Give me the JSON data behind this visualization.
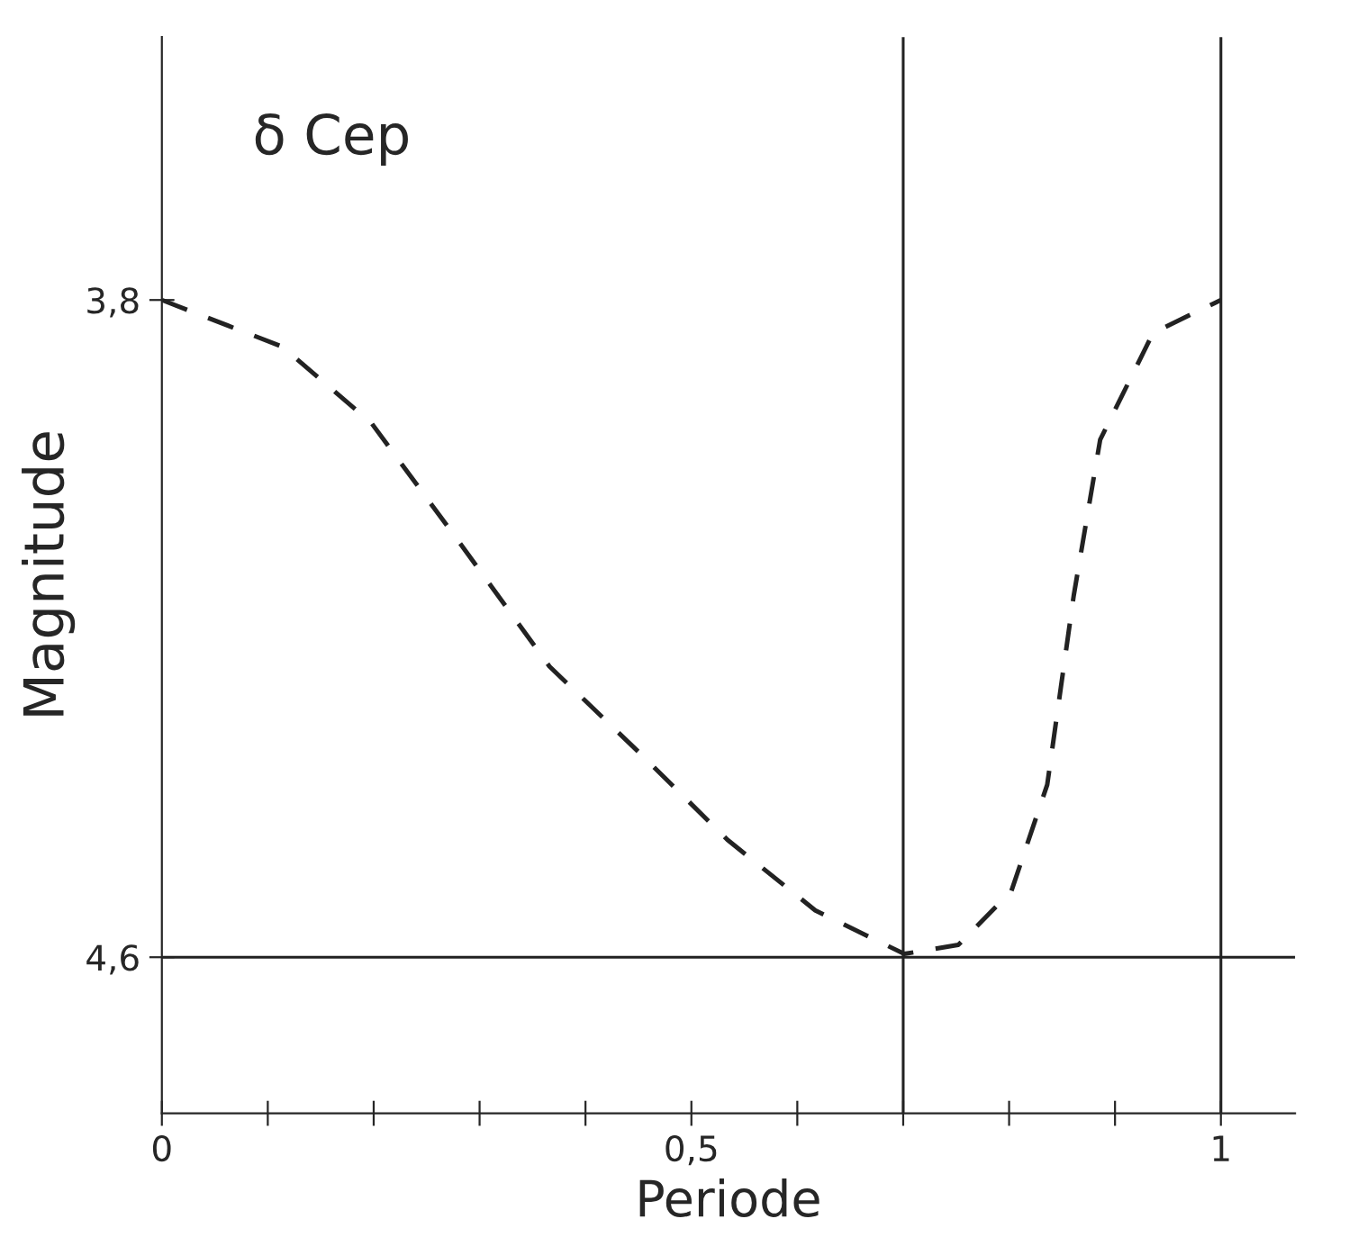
{
  "chart_data": {
    "type": "line",
    "title": "δ Cep",
    "xlabel": "Periode",
    "ylabel": "Magnitude",
    "x": [
      0,
      0.114,
      0.198,
      0.282,
      0.366,
      0.45,
      0.534,
      0.617,
      0.701,
      0.752,
      0.802,
      0.836,
      0.861,
      0.886,
      0.936,
      1
    ],
    "series": [
      {
        "color": "#222222",
        "values": [
          3.8,
          3.857,
          3.95,
          4.097,
          4.246,
          4.35,
          4.457,
          4.543,
          4.596,
          4.585,
          4.52,
          4.39,
          4.16,
          3.97,
          3.84,
          3.8
        ]
      }
    ],
    "xlim": [
      0,
      1.07
    ],
    "ylim": [
      4.79,
      3.48
    ],
    "xticks": [
      {
        "value": 0,
        "label": "0"
      },
      {
        "value": 0.1,
        "label": null
      },
      {
        "value": 0.2,
        "label": null
      },
      {
        "value": 0.3,
        "label": null
      },
      {
        "value": 0.4,
        "label": null
      },
      {
        "value": 0.5,
        "label": "0,5"
      },
      {
        "value": 0.6,
        "label": null
      },
      {
        "value": 0.7,
        "label": null
      },
      {
        "value": 0.8,
        "label": null
      },
      {
        "value": 0.9,
        "label": null
      },
      {
        "value": 1,
        "label": "1"
      }
    ],
    "yticks": [
      {
        "value": 3.8,
        "label": "3,8"
      },
      {
        "value": 4.6,
        "label": "4,6"
      }
    ],
    "ref_lines": [
      {
        "axis": "y",
        "value": 4.6,
        "color": "#222222"
      },
      {
        "axis": "x",
        "value": 0.7,
        "color": "#222222"
      },
      {
        "axis": "x",
        "value": 1,
        "color": "#222222"
      }
    ],
    "grid": false,
    "marker": "none",
    "line_style": "dashed",
    "legend": false
  }
}
